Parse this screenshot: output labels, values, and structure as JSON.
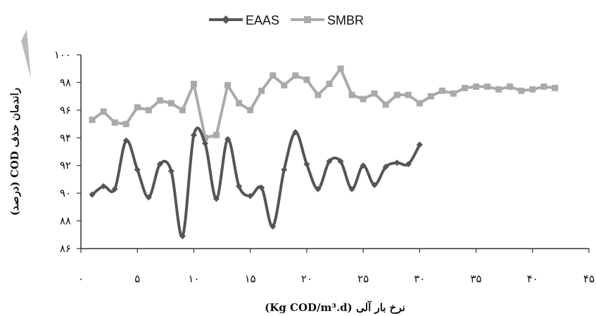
{
  "chart_data": {
    "type": "line",
    "title": "",
    "xlabel": "نرخ بار آلی (Kg COD/m³.d)",
    "ylabel": "راندمان حذف COD (درصد)",
    "xlim": [
      0,
      45
    ],
    "ylim": [
      86,
      100
    ],
    "xticks": [
      0,
      5,
      10,
      15,
      20,
      25,
      30,
      35,
      40,
      45
    ],
    "yticks": [
      86,
      88,
      90,
      92,
      94,
      96,
      98,
      100
    ],
    "xtick_labels": [
      "۰",
      "۵",
      "۱۰",
      "۱۵",
      "۲۰",
      "۲۵",
      "۳۰",
      "۳۵",
      "۴۰",
      "۴۵"
    ],
    "ytick_labels": [
      "۸۶",
      "۸۸",
      "۹۰",
      "۹۲",
      "۹۴",
      "۹۶",
      "۹۸",
      "۱۰۰"
    ],
    "grid": false,
    "legend_position": "top-center",
    "series": [
      {
        "name": "EAAS",
        "color": "#555555",
        "marker": "diamond",
        "smooth": true,
        "x": [
          1,
          2,
          3,
          4,
          5,
          6,
          7,
          8,
          9,
          10,
          11,
          12,
          13,
          14,
          15,
          16,
          17,
          18,
          19,
          20,
          21,
          22,
          23,
          24,
          25,
          26,
          27,
          28,
          29,
          30
        ],
        "y": [
          89.9,
          90.5,
          90.3,
          93.8,
          91.7,
          89.7,
          92.1,
          91.6,
          86.9,
          94.2,
          93.6,
          89.6,
          93.9,
          90.5,
          89.8,
          90.4,
          87.6,
          91.7,
          94.4,
          92.1,
          90.3,
          92.3,
          92.3,
          90.3,
          92.0,
          90.6,
          91.9,
          92.2,
          92.1,
          93.5
        ]
      },
      {
        "name": "SMBR",
        "color": "#aaaaaa",
        "marker": "square",
        "smooth": false,
        "x": [
          1,
          2,
          3,
          4,
          5,
          6,
          7,
          8,
          9,
          10,
          11,
          12,
          13,
          14,
          15,
          16,
          17,
          18,
          19,
          20,
          21,
          22,
          23,
          24,
          25,
          26,
          27,
          28,
          29,
          30,
          31,
          32,
          33,
          34,
          35,
          36,
          37,
          38,
          39,
          40,
          41,
          42
        ],
        "y": [
          95.3,
          95.9,
          95.1,
          95.0,
          96.2,
          96.0,
          96.7,
          96.5,
          96.0,
          97.9,
          94.0,
          94.2,
          97.8,
          96.5,
          96.0,
          97.4,
          98.5,
          97.8,
          98.5,
          98.2,
          97.1,
          97.9,
          99.0,
          97.1,
          96.8,
          97.2,
          96.4,
          97.1,
          97.1,
          96.5,
          97.0,
          97.4,
          97.2,
          97.6,
          97.7,
          97.7,
          97.5,
          97.7,
          97.4,
          97.5,
          97.7,
          97.6
        ]
      }
    ]
  }
}
